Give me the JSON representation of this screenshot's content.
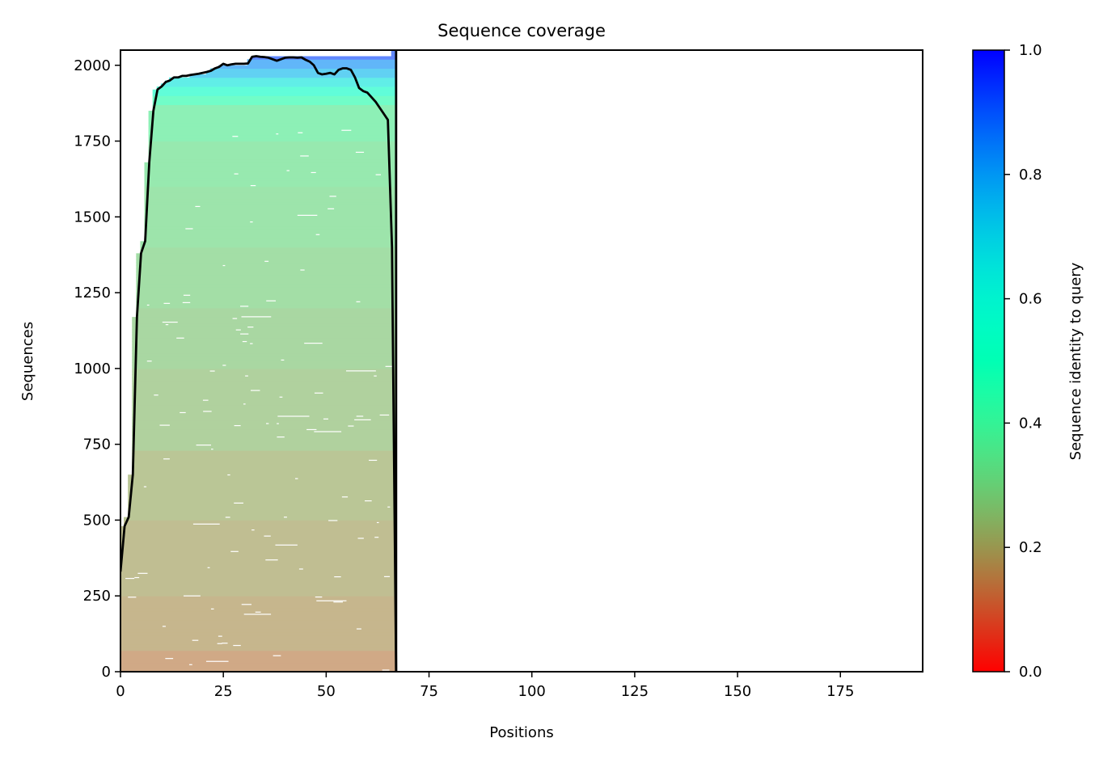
{
  "chart_data": {
    "type": "heatmap",
    "title": "Sequence coverage",
    "xlabel": "Positions",
    "ylabel": "Sequences",
    "xlim": [
      0,
      195
    ],
    "ylim": [
      0,
      2050
    ],
    "xticks": [
      0,
      25,
      50,
      75,
      100,
      125,
      150,
      175
    ],
    "yticks": [
      0,
      250,
      500,
      750,
      1000,
      1250,
      1500,
      1750,
      2000
    ],
    "alignment_length": 67,
    "colorbar": {
      "label": "Sequence identity to query",
      "range": [
        0,
        1
      ],
      "ticks": [
        0.0,
        0.2,
        0.4,
        0.6,
        0.8,
        1.0
      ],
      "colormap": "rainbow_r"
    },
    "identity_bands": [
      {
        "y_from": 0,
        "y_to": 70,
        "identity": 0.15
      },
      {
        "y_from": 70,
        "y_to": 250,
        "identity": 0.18
      },
      {
        "y_from": 250,
        "y_to": 500,
        "identity": 0.2
      },
      {
        "y_from": 500,
        "y_to": 730,
        "identity": 0.22
      },
      {
        "y_from": 730,
        "y_to": 1000,
        "identity": 0.25
      },
      {
        "y_from": 1000,
        "y_to": 1200,
        "identity": 0.27
      },
      {
        "y_from": 1200,
        "y_to": 1400,
        "identity": 0.29
      },
      {
        "y_from": 1400,
        "y_to": 1600,
        "identity": 0.31
      },
      {
        "y_from": 1600,
        "y_to": 1750,
        "identity": 0.33
      },
      {
        "y_from": 1750,
        "y_to": 1870,
        "identity": 0.36
      },
      {
        "y_from": 1870,
        "y_to": 1900,
        "identity": 0.45
      },
      {
        "y_from": 1900,
        "y_to": 1930,
        "identity": 0.55
      },
      {
        "y_from": 1930,
        "y_to": 1960,
        "identity": 0.65
      },
      {
        "y_from": 1960,
        "y_to": 1990,
        "identity": 0.75
      },
      {
        "y_from": 1990,
        "y_to": 2020,
        "identity": 0.82
      },
      {
        "y_from": 2020,
        "y_to": 2050,
        "identity": 0.92
      }
    ],
    "series": [
      {
        "type": "line",
        "color": "#000000",
        "x": [
          0,
          1,
          2,
          3,
          4,
          5,
          6,
          7,
          8,
          9,
          10,
          11,
          12,
          13,
          14,
          15,
          16,
          17,
          18,
          19,
          20,
          21,
          22,
          23,
          24,
          25,
          26,
          27,
          28,
          29,
          30,
          31,
          32,
          33,
          34,
          35,
          36,
          37,
          38,
          39,
          40,
          41,
          42,
          43,
          44,
          45,
          46,
          47,
          48,
          49,
          50,
          51,
          52,
          53,
          54,
          55,
          56,
          57,
          58,
          59,
          60,
          61,
          62,
          63,
          64,
          65,
          66,
          67
        ],
        "y": [
          330,
          480,
          510,
          650,
          1170,
          1380,
          1420,
          1680,
          1850,
          1920,
          1930,
          1945,
          1950,
          1960,
          1960,
          1965,
          1965,
          1968,
          1970,
          1972,
          1975,
          1978,
          1982,
          1990,
          1995,
          2005,
          2000,
          2003,
          2005,
          2005,
          2005,
          2006,
          2028,
          2030,
          2028,
          2027,
          2025,
          2020,
          2015,
          2020,
          2025,
          2026,
          2026,
          2025,
          2026,
          2018,
          2012,
          2000,
          1975,
          1970,
          1972,
          1975,
          1970,
          1985,
          1990,
          1990,
          1985,
          1960,
          1925,
          1915,
          1910,
          1895,
          1880,
          1860,
          1840,
          1820,
          1400,
          0
        ]
      }
    ]
  }
}
